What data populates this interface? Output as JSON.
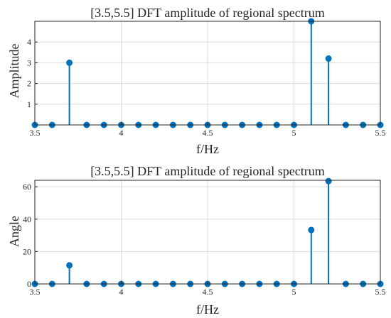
{
  "chart_data": [
    {
      "type": "stem",
      "title": "[3.5,5.5] DFT amplitude of regional spectrum",
      "xlabel": "f/Hz",
      "ylabel": "Amplitude",
      "xlim": [
        3.5,
        5.5
      ],
      "ylim": [
        0,
        5
      ],
      "xticks": [
        3.5,
        4,
        4.5,
        5,
        5.5
      ],
      "xtick_labels": [
        "3.5",
        "4",
        "4.5",
        "5",
        "5.5"
      ],
      "yticks": [
        1,
        2,
        3,
        4
      ],
      "ytick_labels": [
        "1",
        "2",
        "3",
        "4"
      ],
      "grid": true,
      "color": "#0072BD",
      "x": [
        3.5,
        3.6,
        3.7,
        3.8,
        3.9,
        4.0,
        4.1,
        4.2,
        4.3,
        4.4,
        4.5,
        4.6,
        4.7,
        4.8,
        4.9,
        5.0,
        5.1,
        5.2,
        5.3,
        5.4,
        5.5
      ],
      "values": [
        0,
        0,
        3.0,
        0,
        0,
        0,
        0,
        0,
        0,
        0,
        0,
        0,
        0,
        0,
        0,
        0,
        5.0,
        3.2,
        0,
        0,
        0
      ]
    },
    {
      "type": "stem",
      "title": "[3.5,5.5] DFT amplitude of regional spectrum",
      "xlabel": "f/Hz",
      "ylabel": "Angle",
      "xlim": [
        3.5,
        5.5
      ],
      "ylim": [
        0,
        64
      ],
      "xticks": [
        3.5,
        4,
        4.5,
        5,
        5.5
      ],
      "xtick_labels": [
        "3.5",
        "4",
        "4.5",
        "5",
        "5.5"
      ],
      "yticks": [
        0,
        20,
        40,
        60
      ],
      "ytick_labels": [
        "0",
        "20",
        "40",
        "60"
      ],
      "grid": true,
      "color": "#0072BD",
      "x": [
        3.5,
        3.6,
        3.7,
        3.8,
        3.9,
        4.0,
        4.1,
        4.2,
        4.3,
        4.4,
        4.5,
        4.6,
        4.7,
        4.8,
        4.9,
        5.0,
        5.1,
        5.2,
        5.3,
        5.4,
        5.5
      ],
      "values": [
        0,
        0,
        11.5,
        0,
        0,
        0,
        0,
        0,
        0,
        0,
        0,
        0,
        0,
        0,
        0,
        0,
        33.3,
        63.5,
        0,
        0,
        0
      ]
    }
  ]
}
